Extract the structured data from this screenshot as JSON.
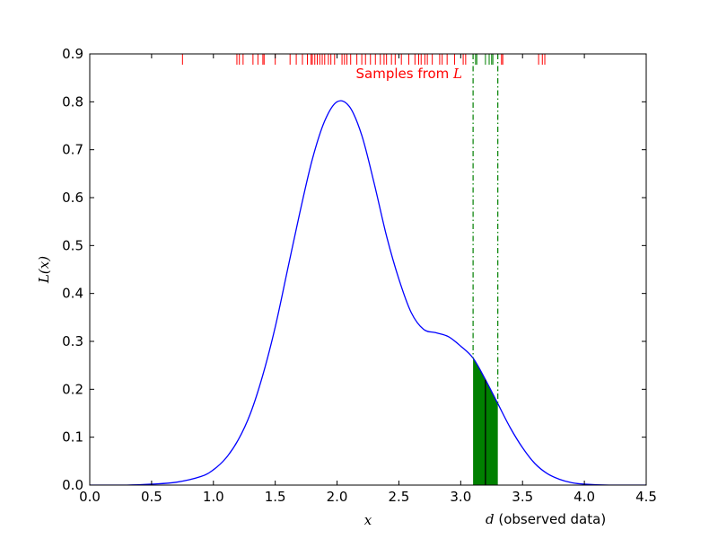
{
  "chart_data": {
    "type": "line",
    "xlim": [
      0,
      4.5
    ],
    "ylim": [
      0,
      0.9
    ],
    "grid": false,
    "xticks": [
      "0.0",
      "0.5",
      "1.0",
      "1.5",
      "2.0",
      "2.5",
      "3.0",
      "3.5",
      "4.0",
      "4.5"
    ],
    "yticks": [
      "0.0",
      "0.1",
      "0.2",
      "0.3",
      "0.4",
      "0.5",
      "0.6",
      "0.7",
      "0.8",
      "0.9"
    ],
    "xlabel": "x",
    "ylabel": "L(x)",
    "curve": {
      "color": "#0000ff",
      "x": [
        0.0,
        0.3,
        0.5,
        0.7,
        0.9,
        1.0,
        1.1,
        1.2,
        1.3,
        1.4,
        1.5,
        1.6,
        1.7,
        1.8,
        1.9,
        2.0,
        2.1,
        2.2,
        2.3,
        2.4,
        2.5,
        2.6,
        2.7,
        2.8,
        2.9,
        3.0,
        3.1,
        3.2,
        3.3,
        3.4,
        3.5,
        3.6,
        3.7,
        3.8,
        3.9,
        4.0,
        4.2,
        4.5
      ],
      "y": [
        0.0,
        0.0,
        0.002,
        0.006,
        0.018,
        0.032,
        0.056,
        0.094,
        0.15,
        0.23,
        0.33,
        0.45,
        0.57,
        0.68,
        0.76,
        0.8,
        0.79,
        0.73,
        0.63,
        0.52,
        0.43,
        0.36,
        0.325,
        0.318,
        0.31,
        0.29,
        0.265,
        0.22,
        0.17,
        0.12,
        0.078,
        0.045,
        0.024,
        0.012,
        0.005,
        0.002,
        0.0,
        0.0
      ]
    },
    "shaded_interval": {
      "x0": 3.1,
      "x1": 3.3,
      "color": "#008000"
    },
    "observed_line": {
      "x": 3.2,
      "y": 0.22,
      "color": "#000000"
    },
    "interval_bounds": {
      "x": [
        3.1,
        3.3
      ],
      "color": "#008000",
      "style": "dash-dot"
    },
    "sample_rug": {
      "label_main": "Samples from ",
      "label_math": "L",
      "color_outside": "#ff0000",
      "color_inside": "#008000",
      "values": [
        0.75,
        1.19,
        1.21,
        1.24,
        1.32,
        1.36,
        1.4,
        1.41,
        1.5,
        1.62,
        1.67,
        1.72,
        1.76,
        1.79,
        1.8,
        1.82,
        1.84,
        1.86,
        1.88,
        1.9,
        1.93,
        1.95,
        1.98,
        2.04,
        2.06,
        2.08,
        2.11,
        2.16,
        2.2,
        2.23,
        2.27,
        2.31,
        2.35,
        2.38,
        2.4,
        2.44,
        2.47,
        2.52,
        2.58,
        2.63,
        2.66,
        2.68,
        2.71,
        2.73,
        2.77,
        2.83,
        2.85,
        2.89,
        2.95,
        3.02,
        3.04,
        3.12,
        3.13,
        3.2,
        3.23,
        3.25,
        3.26,
        3.33,
        3.34,
        3.63,
        3.66,
        3.68
      ]
    },
    "annotation": {
      "math": "d",
      "text": " (observed data)"
    }
  }
}
